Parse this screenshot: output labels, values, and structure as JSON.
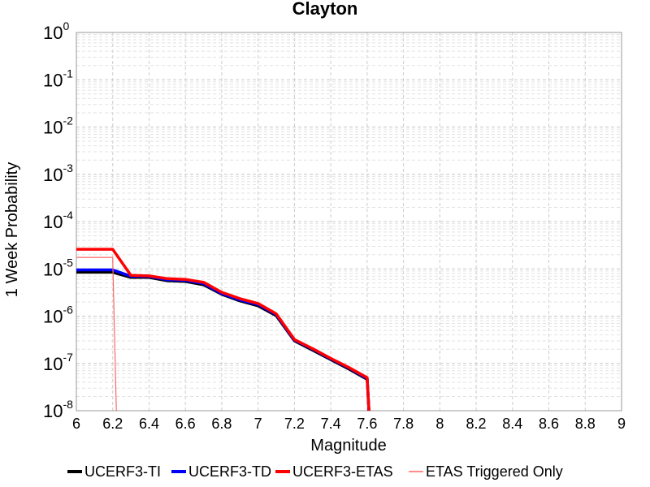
{
  "chart_data": {
    "type": "line",
    "title": "Clayton",
    "xlabel": "Magnitude",
    "ylabel": "1 Week Probability",
    "xlim": [
      6,
      9
    ],
    "ylim": [
      1e-08,
      1
    ],
    "yscale": "log",
    "grid": true,
    "legend_position": "bottom",
    "x_tick_labels": [
      "6",
      "6.2",
      "6.4",
      "6.6",
      "6.8",
      "7",
      "7.2",
      "7.4",
      "7.6",
      "7.8",
      "8",
      "8.2",
      "8.4",
      "8.6",
      "8.8",
      "9"
    ],
    "y_tick_labels": [
      {
        "base": "10",
        "exp": "0"
      },
      {
        "base": "10",
        "exp": "-1"
      },
      {
        "base": "10",
        "exp": "-2"
      },
      {
        "base": "10",
        "exp": "-3"
      },
      {
        "base": "10",
        "exp": "-4"
      },
      {
        "base": "10",
        "exp": "-5"
      },
      {
        "base": "10",
        "exp": "-6"
      },
      {
        "base": "10",
        "exp": "-7"
      },
      {
        "base": "10",
        "exp": "-8"
      }
    ],
    "series": [
      {
        "name": "UCERF3-TI",
        "color": "#000000",
        "x": [
          6.0,
          6.1,
          6.2,
          6.3,
          6.4,
          6.5,
          6.6,
          6.7,
          6.8,
          6.9,
          7.0,
          7.1,
          7.2,
          7.3,
          7.4,
          7.5,
          7.6,
          7.61
        ],
        "y": [
          8.5e-06,
          8.5e-06,
          8.5e-06,
          6.6e-06,
          6.6e-06,
          5.6e-06,
          5.4e-06,
          4.6e-06,
          2.9e-06,
          2.1e-06,
          1.65e-06,
          1.02e-06,
          3e-07,
          1.9e-07,
          1.2e-07,
          7.6e-08,
          4.6e-08,
          1e-08
        ]
      },
      {
        "name": "UCERF3-TD",
        "color": "#0000ff",
        "x": [
          6.0,
          6.1,
          6.2,
          6.3,
          6.4,
          6.5,
          6.6,
          6.7,
          6.8,
          6.9,
          7.0,
          7.1,
          7.2,
          7.3,
          7.4,
          7.5,
          7.6,
          7.61
        ],
        "y": [
          9.5e-06,
          9.5e-06,
          9.5e-06,
          7e-06,
          6.9e-06,
          5.9e-06,
          5.7e-06,
          4.9e-06,
          3e-06,
          2.2e-06,
          1.75e-06,
          1.08e-06,
          3.1e-07,
          2e-07,
          1.25e-07,
          8e-08,
          4.8e-08,
          1e-08
        ]
      },
      {
        "name": "UCERF3-ETAS",
        "color": "#ff0000",
        "x": [
          6.0,
          6.1,
          6.2,
          6.3,
          6.4,
          6.5,
          6.6,
          6.7,
          6.8,
          6.9,
          7.0,
          7.1,
          7.2,
          7.3,
          7.4,
          7.5,
          7.6,
          7.61
        ],
        "y": [
          2.6e-05,
          2.6e-05,
          2.6e-05,
          7.3e-06,
          7.1e-06,
          6.2e-06,
          6e-06,
          5.2e-06,
          3.2e-06,
          2.35e-06,
          1.85e-06,
          1.12e-06,
          3.2e-07,
          2.05e-07,
          1.28e-07,
          8.2e-08,
          5e-08,
          1e-08
        ]
      },
      {
        "name": "ETAS Triggered Only",
        "color": "#ff6666",
        "x": [
          6.0,
          6.1,
          6.2,
          6.22
        ],
        "y": [
          1.75e-05,
          1.75e-05,
          1.75e-05,
          1e-08
        ]
      }
    ]
  }
}
